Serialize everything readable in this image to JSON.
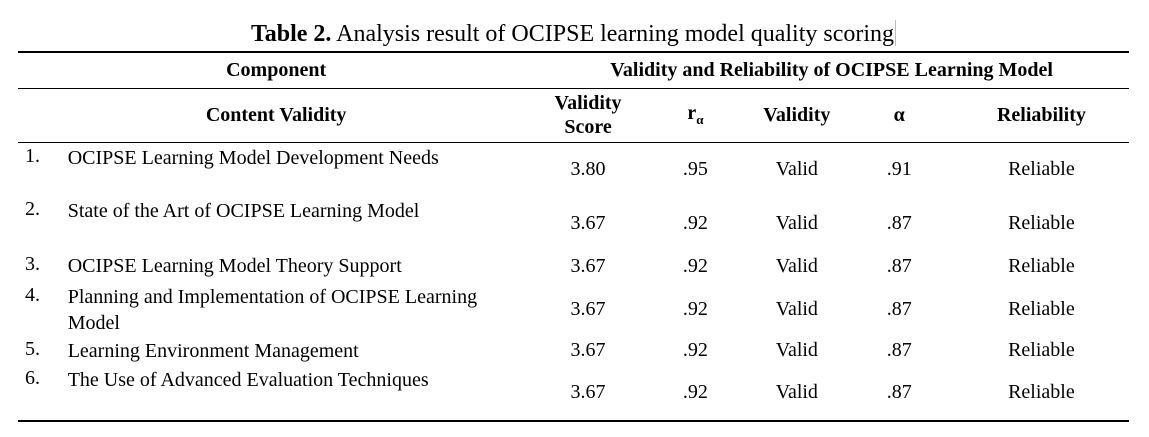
{
  "title": {
    "bold": "Table 2.",
    "rest": " Analysis result of OCIPSE learning model quality scoring"
  },
  "header": {
    "component": "Component",
    "group": "Validity and Reliability of OCIPSE Learning Model",
    "content_validity": "Content Validity",
    "validity_score": "Validity Score",
    "r": "r",
    "r_sub": "α",
    "validity": "Validity",
    "alpha": "α",
    "reliability": "Reliability"
  },
  "rows": [
    {
      "num": "1.",
      "component": "OCIPSE Learning Model Development Needs",
      "score": "3.80",
      "r": ".95",
      "validity": "Valid",
      "alpha": ".91",
      "reliability": "Reliable"
    },
    {
      "num": "2.",
      "component": "State of the Art of OCIPSE Learning Model",
      "score": "3.67",
      "r": ".92",
      "validity": "Valid",
      "alpha": ".87",
      "reliability": "Reliable"
    },
    {
      "num": "3.",
      "component": "OCIPSE Learning Model Theory Support",
      "score": "3.67",
      "r": ".92",
      "validity": "Valid",
      "alpha": ".87",
      "reliability": "Reliable"
    },
    {
      "num": "4.",
      "component": "Planning and Implementation of OCIPSE Learning Model",
      "score": "3.67",
      "r": ".92",
      "validity": "Valid",
      "alpha": ".87",
      "reliability": "Reliable"
    },
    {
      "num": "5.",
      "component": "Learning Environment Management",
      "score": "3.67",
      "r": ".92",
      "validity": "Valid",
      "alpha": ".87",
      "reliability": "Reliable"
    },
    {
      "num": "6.",
      "component": "The Use of Advanced Evaluation Techniques",
      "score": "3.67",
      "r": ".92",
      "validity": "Valid",
      "alpha": ".87",
      "reliability": "Reliable"
    }
  ]
}
